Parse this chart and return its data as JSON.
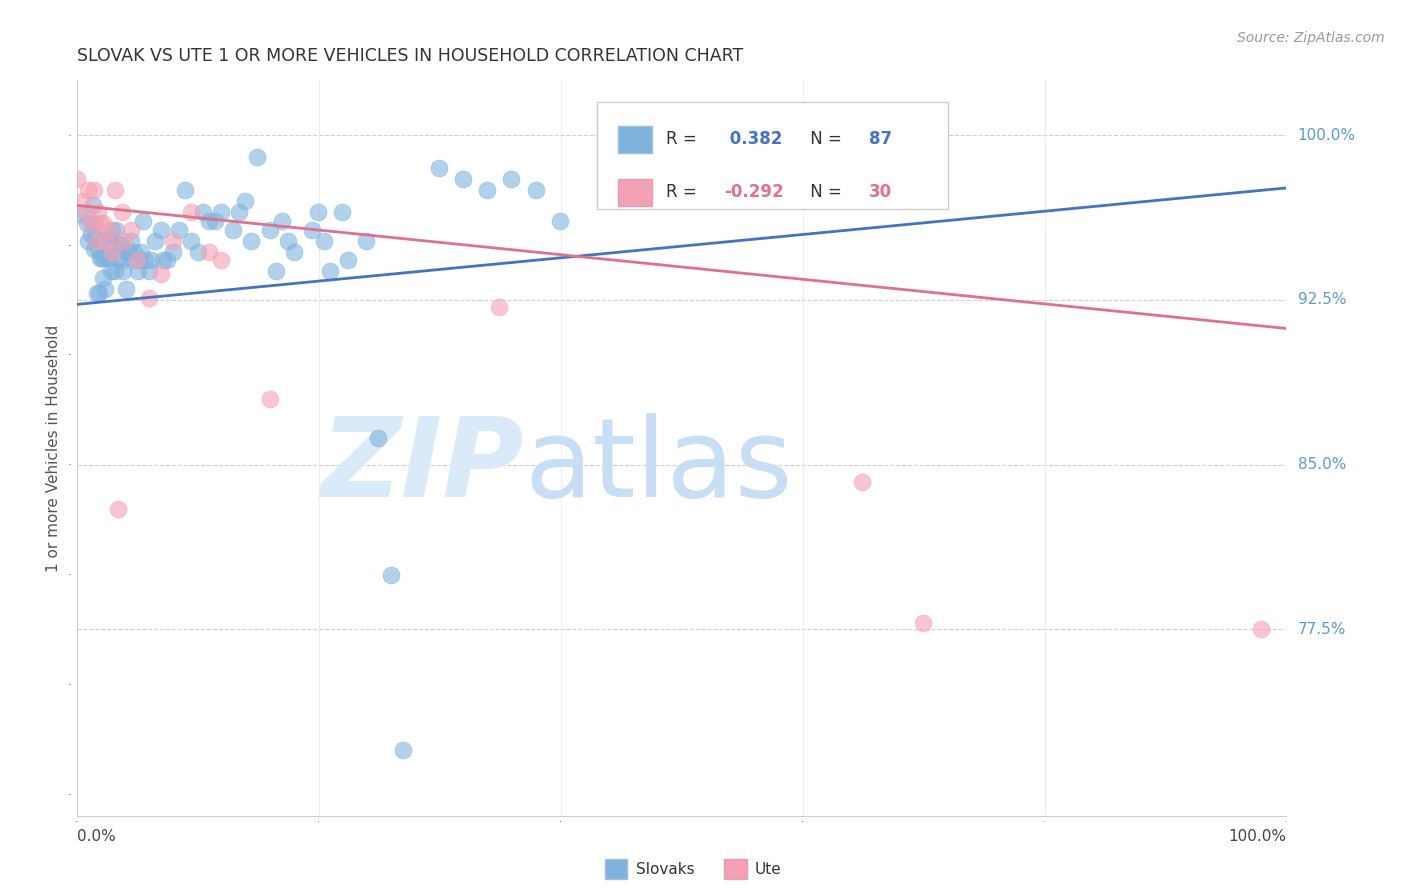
{
  "title": "SLOVAK VS UTE 1 OR MORE VEHICLES IN HOUSEHOLD CORRELATION CHART",
  "source": "Source: ZipAtlas.com",
  "ylabel": "1 or more Vehicles in Household",
  "ytick_labels": [
    "100.0%",
    "92.5%",
    "85.0%",
    "77.5%"
  ],
  "ytick_values": [
    1.0,
    0.925,
    0.85,
    0.775
  ],
  "xlim": [
    0.0,
    1.0
  ],
  "ylim": [
    0.69,
    1.025
  ],
  "legend_r_slovak": "R =",
  "legend_val_slovak": "0.382",
  "legend_n_label": "N =",
  "legend_n_slovak": "87",
  "legend_r_ute": "R =",
  "legend_val_ute": "-0.292",
  "legend_n_ute": "30",
  "color_slovak": "#7fb3de",
  "color_ute": "#f4a0b5",
  "color_slovak_line": "#4472c4",
  "color_ute_line": "#e07090",
  "watermark_zip_color": "#daeaf8",
  "watermark_atlas_color": "#c8def5",
  "slovak_x": [
    0.002,
    0.008,
    0.009,
    0.011,
    0.013,
    0.014,
    0.014,
    0.015,
    0.016,
    0.017,
    0.018,
    0.019,
    0.02,
    0.021,
    0.022,
    0.023,
    0.024,
    0.025,
    0.026,
    0.027,
    0.028,
    0.029,
    0.03,
    0.031,
    0.032,
    0.034,
    0.035,
    0.036,
    0.037,
    0.038,
    0.04,
    0.041,
    0.043,
    0.044,
    0.046,
    0.047,
    0.05,
    0.051,
    0.053,
    0.054,
    0.056,
    0.059,
    0.061,
    0.064,
    0.069,
    0.071,
    0.074,
    0.079,
    0.084,
    0.089,
    0.094,
    0.1,
    0.104,
    0.109,
    0.114,
    0.119,
    0.129,
    0.134,
    0.139,
    0.144,
    0.149,
    0.159,
    0.164,
    0.169,
    0.174,
    0.179,
    0.194,
    0.199,
    0.204,
    0.209,
    0.219,
    0.224,
    0.239,
    0.249,
    0.259,
    0.269,
    0.299,
    0.319,
    0.339,
    0.359,
    0.379,
    0.399,
    0.499,
    0.509,
    0.519,
    0.619,
    0.649
  ],
  "slovak_y": [
    0.964,
    0.96,
    0.952,
    0.955,
    0.968,
    0.96,
    0.948,
    0.953,
    0.928,
    0.948,
    0.928,
    0.944,
    0.944,
    0.935,
    0.944,
    0.93,
    0.953,
    0.944,
    0.952,
    0.95,
    0.938,
    0.957,
    0.95,
    0.938,
    0.957,
    0.944,
    0.95,
    0.95,
    0.943,
    0.938,
    0.93,
    0.947,
    0.947,
    0.952,
    0.943,
    0.947,
    0.938,
    0.943,
    0.947,
    0.961,
    0.943,
    0.938,
    0.943,
    0.952,
    0.957,
    0.943,
    0.943,
    0.947,
    0.957,
    0.975,
    0.952,
    0.947,
    0.965,
    0.961,
    0.961,
    0.965,
    0.957,
    0.965,
    0.97,
    0.952,
    0.99,
    0.957,
    0.938,
    0.961,
    0.952,
    0.947,
    0.957,
    0.965,
    0.952,
    0.938,
    0.965,
    0.943,
    0.952,
    0.862,
    0.8,
    0.72,
    0.985,
    0.98,
    0.975,
    0.98,
    0.975,
    0.961,
    0.98,
    0.98,
    0.98,
    1.0,
    1.0
  ],
  "ute_x": [
    0.0,
    0.004,
    0.007,
    0.009,
    0.011,
    0.014,
    0.016,
    0.017,
    0.019,
    0.021,
    0.024,
    0.027,
    0.029,
    0.031,
    0.034,
    0.037,
    0.039,
    0.044,
    0.049,
    0.059,
    0.069,
    0.079,
    0.094,
    0.109,
    0.119,
    0.159,
    0.349,
    0.649,
    0.699,
    0.979
  ],
  "ute_y": [
    0.98,
    0.97,
    0.965,
    0.975,
    0.96,
    0.975,
    0.952,
    0.965,
    0.96,
    0.96,
    0.952,
    0.957,
    0.947,
    0.975,
    0.83,
    0.965,
    0.952,
    0.957,
    0.943,
    0.926,
    0.937,
    0.952,
    0.965,
    0.947,
    0.943,
    0.88,
    0.922,
    0.842,
    0.778,
    0.775
  ],
  "slovak_trend_y_start": 0.923,
  "slovak_trend_y_end": 0.976,
  "ute_trend_y_start": 0.968,
  "ute_trend_y_end": 0.912,
  "background_color": "#ffffff",
  "grid_color": "#d0d0d0"
}
